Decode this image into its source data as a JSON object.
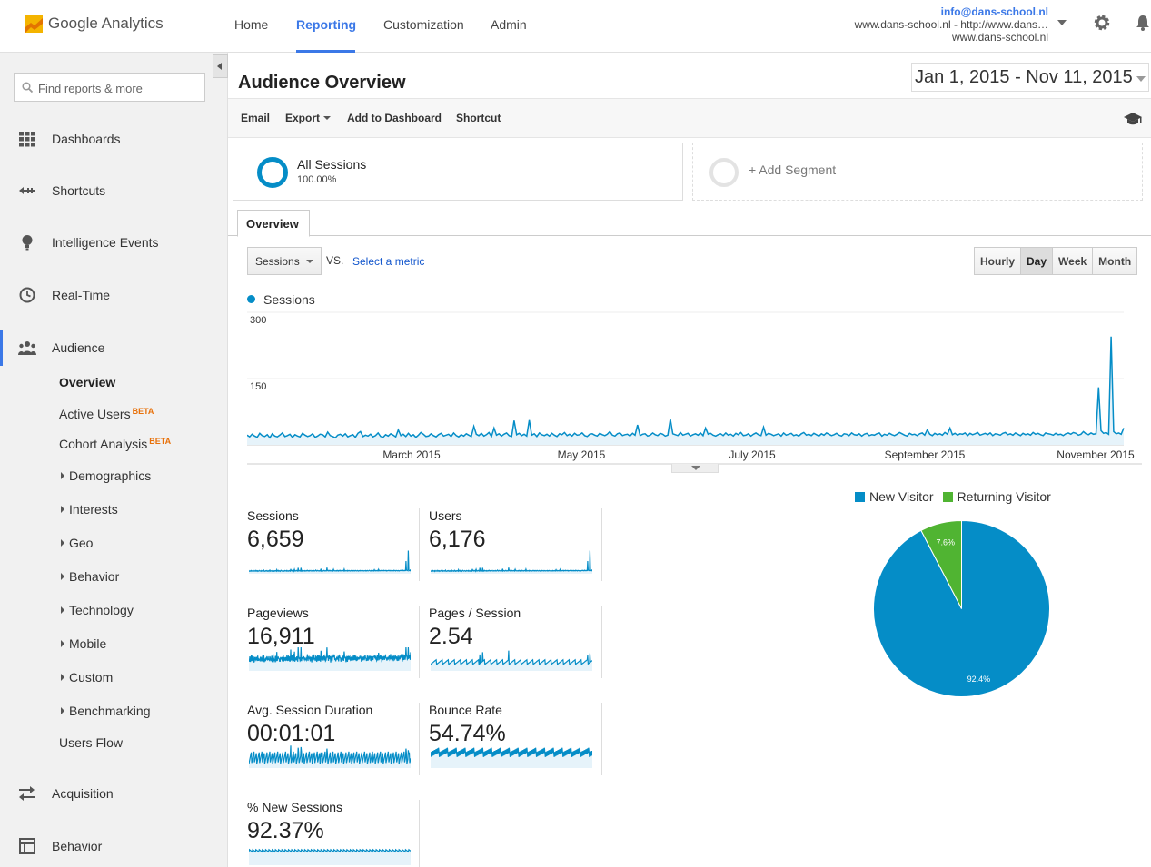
{
  "brand": "Google Analytics",
  "nav": {
    "tabs": [
      "Home",
      "Reporting",
      "Customization",
      "Admin"
    ],
    "active": "Reporting"
  },
  "account": {
    "email": "info@dans-school.nl",
    "property": "www.dans-school.nl - http://www.dans…",
    "view": "www.dans-school.nl"
  },
  "sidebar": {
    "search_placeholder": "Find reports & more",
    "items": [
      {
        "label": "Dashboards",
        "icon": "dashboards-grid-icon"
      },
      {
        "label": "Shortcuts",
        "icon": "shortcuts-arrow-icon"
      },
      {
        "label": "Intelligence Events",
        "icon": "lightbulb-icon"
      },
      {
        "label": "Real-Time",
        "icon": "clock-icon"
      },
      {
        "label": "Audience",
        "icon": "people-icon"
      },
      {
        "label": "Acquisition",
        "icon": "acquisition-arrows-icon"
      },
      {
        "label": "Behavior",
        "icon": "behavior-window-icon"
      }
    ],
    "audience_sub": [
      {
        "label": "Overview",
        "active": true
      },
      {
        "label": "Active Users",
        "badge": "BETA"
      },
      {
        "label": "Cohort Analysis",
        "badge": "BETA"
      },
      {
        "label": "Demographics",
        "expandable": true
      },
      {
        "label": "Interests",
        "expandable": true
      },
      {
        "label": "Geo",
        "expandable": true
      },
      {
        "label": "Behavior",
        "expandable": true
      },
      {
        "label": "Technology",
        "expandable": true
      },
      {
        "label": "Mobile",
        "expandable": true
      },
      {
        "label": "Custom",
        "expandable": true
      },
      {
        "label": "Benchmarking",
        "expandable": true
      },
      {
        "label": "Users Flow"
      }
    ]
  },
  "page": {
    "title": "Audience Overview",
    "date_range": "Jan 1, 2015 - Nov 11, 2015"
  },
  "toolbar": {
    "email": "Email",
    "export": "Export",
    "add_to_dashboard": "Add to Dashboard",
    "shortcut": "Shortcut"
  },
  "segments": {
    "all": {
      "name": "All Sessions",
      "pct": "100.00%"
    },
    "add_label": "+ Add Segment"
  },
  "tabs": {
    "overview": "Overview"
  },
  "controls": {
    "metric": "Sessions",
    "vs": "VS.",
    "select_metric": "Select a metric",
    "granularity": [
      "Hourly",
      "Day",
      "Week",
      "Month"
    ],
    "granularity_active": "Day"
  },
  "colors": {
    "accent": "#3b78e7",
    "series": "#058dc7",
    "returning": "#50b432"
  },
  "chart_data": [
    {
      "type": "line",
      "series": [
        {
          "name": "Sessions",
          "values": [
            22,
            18,
            24,
            20,
            17,
            26,
            21,
            19,
            23,
            16,
            25,
            20,
            18,
            22,
            27,
            19,
            21,
            24,
            17,
            23,
            20,
            18,
            26,
            22,
            19,
            21,
            25,
            17,
            20,
            24,
            23,
            18,
            29,
            21,
            19,
            16,
            22,
            24,
            20,
            25,
            18,
            21,
            23,
            17,
            26,
            30,
            19,
            22,
            20,
            24,
            18,
            21,
            27,
            19,
            17,
            23,
            20,
            25,
            22,
            18,
            34,
            21,
            24,
            19,
            26,
            20,
            23,
            17,
            22,
            28,
            24,
            19,
            20,
            25,
            21,
            18,
            23,
            26,
            20,
            22,
            24,
            19,
            27,
            21,
            18,
            23,
            20,
            25,
            22,
            19,
            42,
            24,
            21,
            26,
            20,
            23,
            28,
            19,
            38,
            22,
            25,
            20,
            24,
            27,
            21,
            19,
            55,
            23,
            26,
            21,
            24,
            20,
            56,
            22,
            25,
            19,
            27,
            23,
            21,
            24,
            20,
            26,
            22,
            19,
            25,
            23,
            28,
            21,
            24,
            20,
            26,
            22,
            23,
            27,
            21,
            19,
            24,
            25,
            22,
            20,
            26,
            23,
            21,
            24,
            30,
            22,
            20,
            25,
            27,
            21,
            23,
            24,
            20,
            26,
            22,
            45,
            21,
            24,
            25,
            20,
            22,
            27,
            23,
            21,
            26,
            24,
            20,
            22,
            58,
            25,
            23,
            21,
            28,
            22,
            24,
            26,
            20,
            23,
            25,
            22,
            27,
            21,
            38,
            24,
            26,
            22,
            20,
            23,
            25,
            21,
            27,
            22,
            24,
            20,
            26,
            23,
            28,
            21,
            22,
            25,
            20,
            24,
            27,
            23,
            21,
            40,
            22,
            26,
            24,
            21,
            23,
            25,
            20,
            27,
            22,
            24,
            26,
            21,
            23,
            20,
            25,
            28,
            22,
            24,
            21,
            26,
            23,
            20,
            25,
            22,
            27,
            24,
            21,
            23,
            26,
            22,
            20,
            25,
            24,
            21,
            27,
            23,
            22,
            25,
            20,
            24,
            26,
            21,
            23,
            22,
            25,
            27,
            20,
            24,
            22,
            26,
            23,
            21,
            24,
            28,
            25,
            22,
            20,
            26,
            23,
            24,
            21,
            25,
            27,
            22,
            34,
            24,
            21,
            26,
            23,
            25,
            22,
            28,
            24,
            38,
            23,
            26,
            22,
            25,
            24,
            27,
            21,
            26,
            23,
            25,
            28,
            22,
            24,
            26,
            23,
            27,
            21,
            25,
            24,
            22,
            26,
            28,
            23,
            25,
            22,
            27,
            24,
            21,
            26,
            23,
            25,
            22,
            28,
            24,
            26,
            23,
            21,
            27,
            25,
            24,
            22,
            26,
            23,
            24,
            21,
            25,
            27,
            24,
            28,
            26,
            22,
            24,
            30,
            25,
            23,
            27,
            24,
            25,
            130,
            32,
            26,
            28,
            24,
            245,
            30,
            25,
            27,
            24,
            38
          ]
        }
      ],
      "x_tick_labels": [
        "March 2015",
        "May 2015",
        "July 2015",
        "September 2015",
        "November 2015"
      ],
      "y_tick_labels": [
        "300",
        "150"
      ],
      "ylim": [
        0,
        300
      ],
      "grid": true
    },
    {
      "type": "pie",
      "series": [
        {
          "name": "New Visitor",
          "value": 92.4
        },
        {
          "name": "Returning Visitor",
          "value": 7.6
        }
      ],
      "labels": [
        "92.4%",
        "7.6%"
      ],
      "legend": "top"
    }
  ],
  "metrics": [
    {
      "name": "Sessions",
      "value": "6,659",
      "spark": "sessions"
    },
    {
      "name": "Users",
      "value": "6,176",
      "spark": "sessions"
    },
    {
      "name": "Pageviews",
      "value": "16,911",
      "spark": "pageviews"
    },
    {
      "name": "Pages / Session",
      "value": "2.54",
      "spark": "pages"
    },
    {
      "name": "Avg. Session Duration",
      "value": "00:01:01",
      "spark": "duration"
    },
    {
      "name": "Bounce Rate",
      "value": "54.74%",
      "spark": "bounce"
    },
    {
      "name": "% New Sessions",
      "value": "92.37%",
      "spark": "newsessions"
    }
  ]
}
